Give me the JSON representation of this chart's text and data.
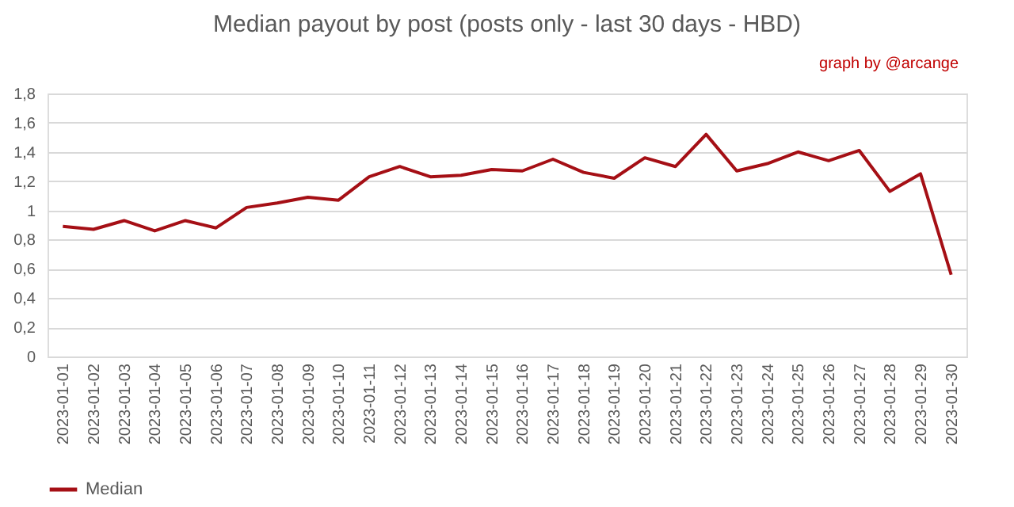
{
  "chart_data": {
    "type": "line",
    "title": "Median payout by post (posts only - last 30 days - HBD)",
    "annotations": [
      "graph by @arcange"
    ],
    "categories": [
      "2023-01-01",
      "2023-01-02",
      "2023-01-03",
      "2023-01-04",
      "2023-01-05",
      "2023-01-06",
      "2023-01-07",
      "2023-01-08",
      "2023-01-09",
      "2023-01-10",
      "2023-01-11",
      "2023-01-12",
      "2023-01-13",
      "2023-01-14",
      "2023-01-15",
      "2023-01-16",
      "2023-01-17",
      "2023-01-18",
      "2023-01-19",
      "2023-01-20",
      "2023-01-21",
      "2023-01-22",
      "2023-01-23",
      "2023-01-24",
      "2023-01-25",
      "2023-01-26",
      "2023-01-27",
      "2023-01-28",
      "2023-01-29",
      "2023-01-30"
    ],
    "series": [
      {
        "name": "Median",
        "color": "#a50f15",
        "values": [
          0.89,
          0.87,
          0.93,
          0.86,
          0.93,
          0.88,
          1.02,
          1.05,
          1.09,
          1.07,
          1.23,
          1.3,
          1.23,
          1.24,
          1.28,
          1.27,
          1.35,
          1.26,
          1.22,
          1.36,
          1.3,
          1.52,
          1.27,
          1.32,
          1.4,
          1.34,
          1.41,
          1.13,
          1.25,
          0.56
        ]
      }
    ],
    "ylim": [
      0,
      1.8
    ],
    "yticks": [
      0,
      {
        "value": 0.2,
        "label": "0,2"
      },
      {
        "value": 0.4,
        "label": "0,4"
      },
      {
        "value": 0.6,
        "label": "0,6"
      },
      {
        "value": 0.8,
        "label": "0,8"
      },
      1,
      {
        "value": 1.2,
        "label": "1,2"
      },
      {
        "value": 1.4,
        "label": "1,4"
      },
      {
        "value": 1.6,
        "label": "1,6"
      },
      {
        "value": 1.8,
        "label": "1,8"
      }
    ],
    "grid": "y",
    "legend": "bottom",
    "line_style": "solid",
    "marker": "none"
  }
}
